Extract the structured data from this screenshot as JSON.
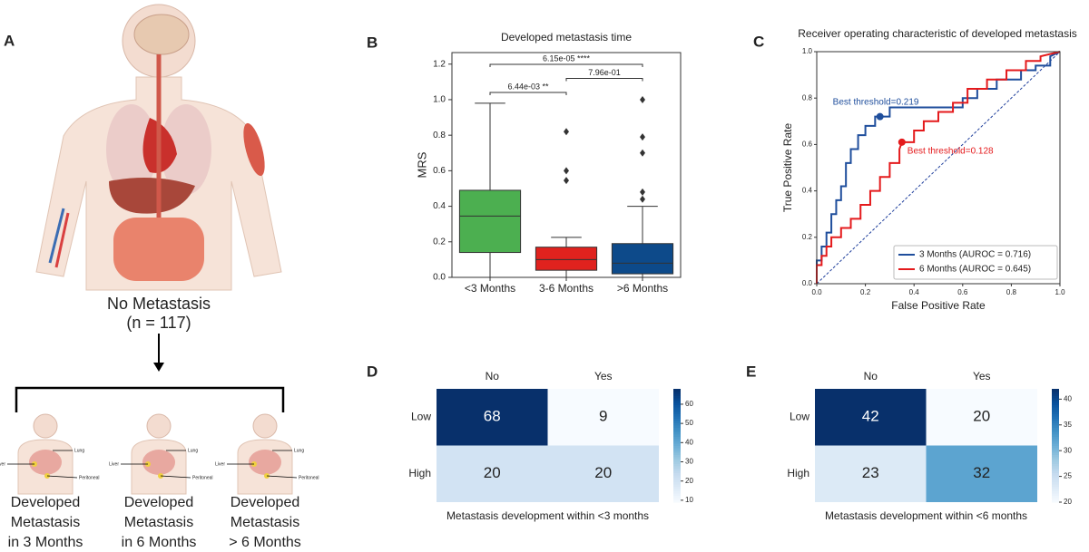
{
  "diagram": {
    "panel_label": "A",
    "top_label": "No Metastasis",
    "top_count": "(n = 117)",
    "organ_labels": [
      "Lung",
      "Liver",
      "Peritoneal"
    ],
    "groups": [
      [
        "Developed",
        "Metastasis",
        "in 3 Months"
      ],
      [
        "Developed",
        "Metastasis",
        "in 6 Months"
      ],
      [
        "Developed",
        "Metastasis",
        "> 6 Months"
      ]
    ]
  },
  "chart_data": [
    {
      "type": "box",
      "panel_label": "B",
      "title": "Developed metastasis time",
      "ylabel": "MRS",
      "categories": [
        "<3 Months",
        "3-6 Months",
        ">6 Months"
      ],
      "colors": [
        "#4caf50",
        "#e0221e",
        "#0d4a8a"
      ],
      "boxes": [
        {
          "low": 0,
          "q1": 0.14,
          "median": 0.345,
          "q3": 0.49,
          "high": 0.98,
          "outliers": []
        },
        {
          "low": 0,
          "q1": 0.04,
          "median": 0.1,
          "q3": 0.17,
          "high": 0.225,
          "outliers": [
            0.82,
            0.6,
            0.545
          ]
        },
        {
          "low": 0,
          "q1": 0.02,
          "median": 0.08,
          "q3": 0.19,
          "high": 0.4,
          "outliers": [
            1.0,
            0.79,
            0.7,
            0.48,
            0.44
          ]
        }
      ],
      "ylim": [
        0,
        1.265
      ],
      "yticks": [
        {
          "value": 0,
          "label": "0.0"
        },
        0.2,
        0.4,
        0.6,
        0.8,
        {
          "value": 1,
          "label": "1.0"
        },
        1.2
      ],
      "annotations": [
        {
          "text": "6.44e-03 **",
          "groups": [
            "<3 Months",
            "3-6 Months"
          ]
        },
        {
          "text": "7.96e-01",
          "groups": [
            "3-6 Months",
            ">6 Months"
          ]
        },
        {
          "text": "6.15e-05 ****",
          "groups": [
            "<3 Months",
            ">6 Months"
          ]
        }
      ]
    },
    {
      "type": "roc",
      "panel_label": "C",
      "title": "Receiver operating characteristic of developed metastasis",
      "xlabel": "False Positive Rate",
      "ylabel": "True Positive Rate",
      "xlim": [
        0,
        1
      ],
      "ylim": [
        0,
        1
      ],
      "xticks": [
        {
          "value": 0,
          "label": "0.0"
        },
        0.2,
        0.4,
        0.6,
        0.8,
        {
          "value": 1,
          "label": "1.0"
        }
      ],
      "yticks": [
        {
          "value": 0,
          "label": "0.0"
        },
        0.2,
        0.4,
        0.6,
        0.8,
        {
          "value": 1,
          "label": "1.0"
        }
      ],
      "legend": "lower right",
      "series": [
        {
          "name": "3 Months (AUROC = 0.716)",
          "color": "#1f4e9c",
          "x": [
            0,
            0,
            0.02,
            0.02,
            0.04,
            0.04,
            0.06,
            0.06,
            0.08,
            0.08,
            0.1,
            0.1,
            0.12,
            0.12,
            0.14,
            0.14,
            0.17,
            0.17,
            0.2,
            0.2,
            0.24,
            0.24,
            0.3,
            0.3,
            0.6,
            0.6,
            0.66,
            0.66,
            0.74,
            0.74,
            0.84,
            0.84,
            0.9,
            0.9,
            0.96,
            0.96,
            1
          ],
          "y": [
            0,
            0.1,
            0.1,
            0.16,
            0.16,
            0.22,
            0.22,
            0.3,
            0.3,
            0.36,
            0.36,
            0.42,
            0.42,
            0.52,
            0.52,
            0.58,
            0.58,
            0.64,
            0.64,
            0.68,
            0.68,
            0.72,
            0.72,
            0.76,
            0.76,
            0.8,
            0.8,
            0.84,
            0.84,
            0.88,
            0.88,
            0.92,
            0.92,
            0.94,
            0.94,
            0.98,
            1
          ],
          "best_point": {
            "x": 0.26,
            "y": 0.72,
            "label": "Best threshold=0.219"
          }
        },
        {
          "name": "6 Months (AUROC = 0.645)",
          "color": "#e41a1c",
          "x": [
            0,
            0,
            0.02,
            0.02,
            0.04,
            0.04,
            0.06,
            0.06,
            0.1,
            0.1,
            0.14,
            0.14,
            0.18,
            0.18,
            0.22,
            0.22,
            0.26,
            0.26,
            0.3,
            0.3,
            0.34,
            0.34,
            0.35,
            0.4,
            0.4,
            0.44,
            0.44,
            0.5,
            0.5,
            0.56,
            0.56,
            0.62,
            0.62,
            0.7,
            0.7,
            0.78,
            0.78,
            0.86,
            0.86,
            0.92,
            0.92,
            1
          ],
          "y": [
            0,
            0.08,
            0.08,
            0.12,
            0.12,
            0.16,
            0.16,
            0.2,
            0.2,
            0.24,
            0.24,
            0.28,
            0.28,
            0.34,
            0.34,
            0.4,
            0.4,
            0.46,
            0.46,
            0.52,
            0.52,
            0.58,
            0.61,
            0.61,
            0.66,
            0.66,
            0.7,
            0.7,
            0.74,
            0.74,
            0.78,
            0.78,
            0.84,
            0.84,
            0.88,
            0.88,
            0.92,
            0.92,
            0.96,
            0.96,
            0.98,
            1
          ],
          "best_point": {
            "x": 0.35,
            "y": 0.61,
            "label": "Best threshold=0.128"
          }
        }
      ]
    },
    {
      "type": "heatmap",
      "panel_label": "D",
      "xcategories": [
        "No",
        "Yes"
      ],
      "ycategories": [
        "Low",
        "High"
      ],
      "values": [
        [
          68,
          9
        ],
        [
          20,
          20
        ]
      ],
      "xlabel": "Metastasis development within <3 months",
      "colormap": "Blues",
      "clim": [
        9,
        68
      ],
      "cticks": [
        10,
        20,
        30,
        40,
        50,
        60
      ]
    },
    {
      "type": "heatmap",
      "panel_label": "E",
      "xcategories": [
        "No",
        "Yes"
      ],
      "ycategories": [
        "Low",
        "High"
      ],
      "values": [
        [
          42,
          20
        ],
        [
          23,
          32
        ]
      ],
      "xlabel": "Metastasis development within <6 months",
      "colormap": "Blues",
      "clim": [
        20,
        42
      ],
      "cticks": [
        20,
        25,
        30,
        35,
        40
      ]
    }
  ]
}
